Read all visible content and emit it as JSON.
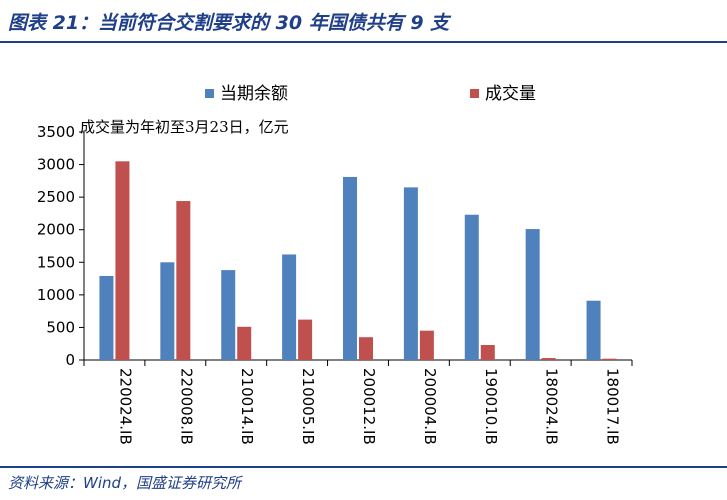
{
  "header": {
    "title": "图表 21：当前符合交割要求的 30 年国债共有 9 支"
  },
  "footer": {
    "source": "资料来源：Wind，国盛证券研究所"
  },
  "colors": {
    "accent": "#1f3f88",
    "series_balance": "#4f81bd",
    "series_volume": "#c0504d"
  },
  "chart_data": {
    "type": "bar",
    "title": "",
    "annotation": "成交量为年初至3月23日，亿元",
    "xlabel": "",
    "ylabel": "",
    "ylim": [
      0,
      3500
    ],
    "yticks": [
      0,
      500,
      1000,
      1500,
      2000,
      2500,
      3000,
      3500
    ],
    "grid": false,
    "legend_position": "top",
    "categories": [
      "220024.IB",
      "220008.IB",
      "210014.IB",
      "210005.IB",
      "200012.IB",
      "200004.IB",
      "190010.IB",
      "180024.IB",
      "180017.IB"
    ],
    "series": [
      {
        "name": "当期余额",
        "values": [
          1290,
          1500,
          1380,
          1620,
          2810,
          2650,
          2230,
          2010,
          910
        ]
      },
      {
        "name": "成交量",
        "values": [
          3050,
          2440,
          510,
          620,
          350,
          450,
          230,
          30,
          20
        ]
      }
    ]
  }
}
